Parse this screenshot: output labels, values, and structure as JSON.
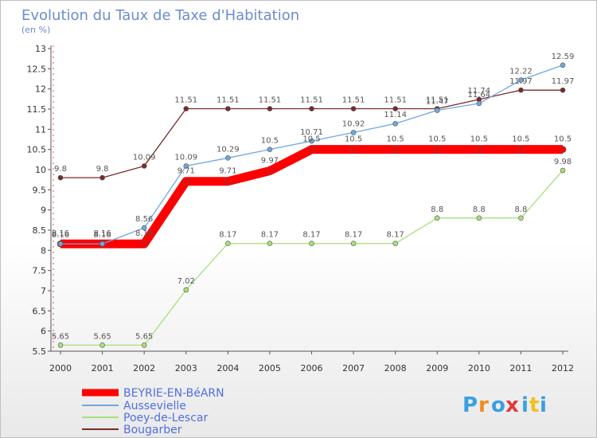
{
  "chart_data": {
    "type": "line",
    "title": "Evolution du Taux de Taxe d'Habitation",
    "subtitle": "(en %)",
    "xlabel": "",
    "ylabel": "",
    "x": [
      "2000",
      "2001",
      "2002",
      "2003",
      "2004",
      "2005",
      "2006",
      "2007",
      "2008",
      "2009",
      "2010",
      "2011",
      "2012"
    ],
    "ylim": [
      5.5,
      13
    ],
    "yticks": [
      "5.5",
      "6",
      "6.5",
      "7",
      "7.5",
      "8",
      "8.5",
      "9",
      "9.5",
      "10",
      "10.5",
      "11",
      "11.5",
      "12",
      "12.5",
      "13"
    ],
    "grid": false,
    "legend_position": "bottom-left",
    "series": [
      {
        "name": "BEYRIE-EN-BéARN",
        "color": "#ff0000",
        "values": [
          8.16,
          8.16,
          8.16,
          9.71,
          9.71,
          9.97,
          10.5,
          10.5,
          10.5,
          10.5,
          10.5,
          10.5,
          10.5
        ],
        "labels": [
          "8.16",
          "8.16",
          "8.16",
          "9.71",
          "9.71",
          "9.97",
          "10.5",
          "10.5",
          "10.5",
          "10.5",
          "10.5",
          "10.5",
          "10.5"
        ]
      },
      {
        "name": "Aussevielle",
        "color": "#6fa8dc",
        "values": [
          8.16,
          8.16,
          8.56,
          10.09,
          10.29,
          10.5,
          10.71,
          10.92,
          11.14,
          11.47,
          11.64,
          12.22,
          12.59
        ],
        "labels": [
          "8.16",
          "8.16",
          "8.56",
          "10.09",
          "10.29",
          "10.5",
          "10.71",
          "10.92",
          "11.14",
          "11.47",
          "11.64",
          "12.22",
          "12.59"
        ]
      },
      {
        "name": "Poey-de-Lescar",
        "color": "#a6e07a",
        "values": [
          5.65,
          5.65,
          5.65,
          7.02,
          8.17,
          8.17,
          8.17,
          8.17,
          8.17,
          8.8,
          8.8,
          8.8,
          9.98
        ],
        "labels": [
          "5.65",
          "5.65",
          "5.65",
          "7.02",
          "8.17",
          "8.17",
          "8.17",
          "8.17",
          "8.17",
          "8.8",
          "8.8",
          "8.8",
          "9.98"
        ]
      },
      {
        "name": "Bougarber",
        "color": "#7a2a2a",
        "values": [
          9.8,
          9.8,
          10.09,
          11.51,
          11.51,
          11.51,
          11.51,
          11.51,
          11.51,
          11.51,
          11.74,
          11.97,
          11.97
        ],
        "labels": [
          "9.8",
          "9.8",
          "10.09",
          "11.51",
          "11.51",
          "11.51",
          "11.51",
          "11.51",
          "11.51",
          "11.51",
          "11.74",
          "11.97",
          "11.97"
        ]
      }
    ]
  },
  "logo": {
    "letters": [
      "P",
      "r",
      "o",
      "x",
      "i",
      "t",
      "i"
    ]
  }
}
